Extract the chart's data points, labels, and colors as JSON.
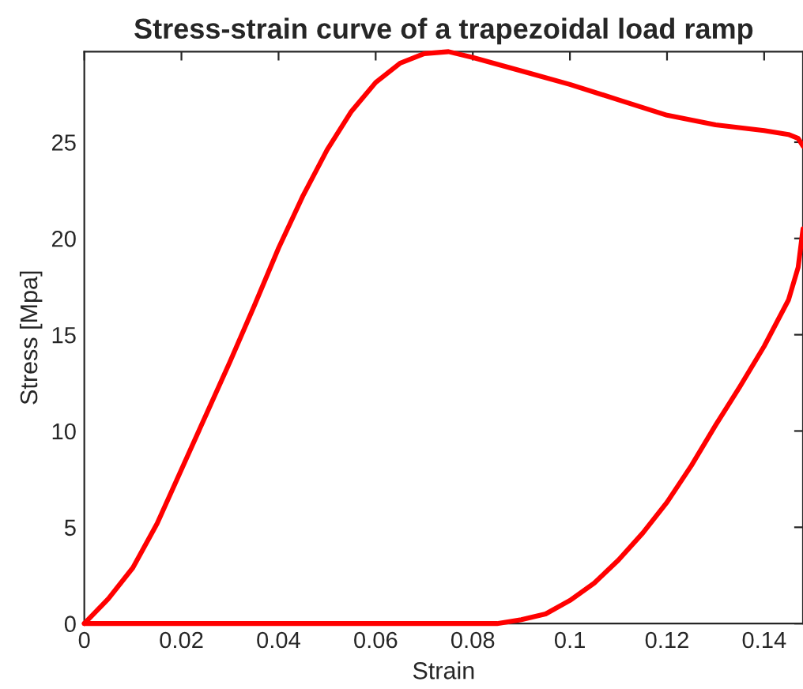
{
  "chart_data": {
    "type": "line",
    "title": "Stress-strain curve of a trapezoidal load ramp",
    "xlabel": "Strain",
    "ylabel": "Stress [Mpa]",
    "series": [
      {
        "color": "#ff0000",
        "x": [
          0,
          0.005,
          0.01,
          0.015,
          0.02,
          0.025,
          0.03,
          0.035,
          0.04,
          0.045,
          0.05,
          0.055,
          0.06,
          0.065,
          0.07,
          0.075,
          0.08,
          0.09,
          0.1,
          0.11,
          0.12,
          0.13,
          0.14,
          0.145,
          0.147,
          0.148
        ],
        "values": [
          0,
          1.3,
          2.9,
          5.2,
          8,
          10.8,
          13.6,
          16.5,
          19.5,
          22.2,
          24.6,
          26.6,
          28.1,
          29.1,
          29.6,
          29.7,
          29.4,
          28.7,
          28,
          27.2,
          26.4,
          25.9,
          25.6,
          25.4,
          25.2,
          24.8
        ]
      },
      {
        "color": "#ff0000",
        "x": [
          0,
          0.02,
          0.04,
          0.06,
          0.08,
          0.085,
          0.09,
          0.095,
          0.1,
          0.105,
          0.11,
          0.115,
          0.12,
          0.125,
          0.13,
          0.135,
          0.14,
          0.145,
          0.147,
          0.148
        ],
        "values": [
          0,
          0,
          0,
          0,
          0,
          0,
          0.2,
          0.5,
          1.2,
          2.1,
          3.3,
          4.7,
          6.3,
          8.2,
          10.3,
          12.3,
          14.4,
          16.8,
          18.5,
          20.5
        ]
      }
    ],
    "xlim": [
      0,
      0.148
    ],
    "ylim": [
      0,
      29.7
    ],
    "xticks": [
      0,
      0.02,
      0.04,
      0.06,
      0.08,
      0.1,
      0.12,
      0.14
    ],
    "yticks": [
      0,
      5,
      10,
      15,
      20,
      25
    ],
    "line_style": "solid",
    "marker": "none",
    "grid": false,
    "legend": false
  }
}
